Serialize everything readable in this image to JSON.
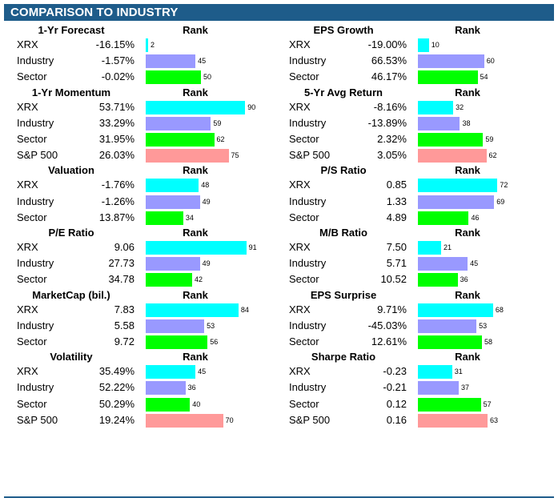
{
  "header": {
    "title": "COMPARISON TO INDUSTRY"
  },
  "colors": {
    "header_bg": "#1e5c8a",
    "XRX": "#00ffff",
    "Industry": "#9999ff",
    "Sector": "#00ff00",
    "S&P 500": "#ff9999"
  },
  "rank_label": "Rank",
  "chart_data": [
    {
      "type": "bar",
      "title": "1-Yr Forecast",
      "rows": [
        {
          "label": "XRX",
          "value": "-16.15%",
          "rank": 2
        },
        {
          "label": "Industry",
          "value": "-1.57%",
          "rank": 45
        },
        {
          "label": "Sector",
          "value": "-0.02%",
          "rank": 50
        }
      ]
    },
    {
      "type": "bar",
      "title": "EPS Growth",
      "rows": [
        {
          "label": "XRX",
          "value": "-19.00%",
          "rank": 10
        },
        {
          "label": "Industry",
          "value": "66.53%",
          "rank": 60
        },
        {
          "label": "Sector",
          "value": "46.17%",
          "rank": 54
        }
      ]
    },
    {
      "type": "bar",
      "title": "1-Yr Momentum",
      "rows": [
        {
          "label": "XRX",
          "value": "53.71%",
          "rank": 90
        },
        {
          "label": "Industry",
          "value": "33.29%",
          "rank": 59
        },
        {
          "label": "Sector",
          "value": "31.95%",
          "rank": 62
        },
        {
          "label": "S&P 500",
          "value": "26.03%",
          "rank": 75
        }
      ]
    },
    {
      "type": "bar",
      "title": "5-Yr Avg Return",
      "rows": [
        {
          "label": "XRX",
          "value": "-8.16%",
          "rank": 32
        },
        {
          "label": "Industry",
          "value": "-13.89%",
          "rank": 38
        },
        {
          "label": "Sector",
          "value": "2.32%",
          "rank": 59
        },
        {
          "label": "S&P 500",
          "value": "3.05%",
          "rank": 62
        }
      ]
    },
    {
      "type": "bar",
      "title": "Valuation",
      "rows": [
        {
          "label": "XRX",
          "value": "-1.76%",
          "rank": 48
        },
        {
          "label": "Industry",
          "value": "-1.26%",
          "rank": 49
        },
        {
          "label": "Sector",
          "value": "13.87%",
          "rank": 34
        }
      ]
    },
    {
      "type": "bar",
      "title": "P/S Ratio",
      "rows": [
        {
          "label": "XRX",
          "value": "0.85",
          "rank": 72
        },
        {
          "label": "Industry",
          "value": "1.33",
          "rank": 69
        },
        {
          "label": "Sector",
          "value": "4.89",
          "rank": 46
        }
      ]
    },
    {
      "type": "bar",
      "title": "P/E Ratio",
      "rows": [
        {
          "label": "XRX",
          "value": "9.06",
          "rank": 91
        },
        {
          "label": "Industry",
          "value": "27.73",
          "rank": 49
        },
        {
          "label": "Sector",
          "value": "34.78",
          "rank": 42
        }
      ]
    },
    {
      "type": "bar",
      "title": "M/B Ratio",
      "rows": [
        {
          "label": "XRX",
          "value": "7.50",
          "rank": 21
        },
        {
          "label": "Industry",
          "value": "5.71",
          "rank": 45
        },
        {
          "label": "Sector",
          "value": "10.52",
          "rank": 36
        }
      ]
    },
    {
      "type": "bar",
      "title": "MarketCap (bil.)",
      "rows": [
        {
          "label": "XRX",
          "value": "7.83",
          "rank": 84
        },
        {
          "label": "Industry",
          "value": "5.58",
          "rank": 53
        },
        {
          "label": "Sector",
          "value": "9.72",
          "rank": 56
        }
      ]
    },
    {
      "type": "bar",
      "title": "EPS Surprise",
      "rows": [
        {
          "label": "XRX",
          "value": "9.71%",
          "rank": 68
        },
        {
          "label": "Industry",
          "value": "-45.03%",
          "rank": 53
        },
        {
          "label": "Sector",
          "value": "12.61%",
          "rank": 58
        }
      ]
    },
    {
      "type": "bar",
      "title": "Volatility",
      "rows": [
        {
          "label": "XRX",
          "value": "35.49%",
          "rank": 45
        },
        {
          "label": "Industry",
          "value": "52.22%",
          "rank": 36
        },
        {
          "label": "Sector",
          "value": "50.29%",
          "rank": 40
        },
        {
          "label": "S&P 500",
          "value": "19.24%",
          "rank": 70
        }
      ]
    },
    {
      "type": "bar",
      "title": "Sharpe Ratio",
      "rows": [
        {
          "label": "XRX",
          "value": "-0.23",
          "rank": 31
        },
        {
          "label": "Industry",
          "value": "-0.21",
          "rank": 37
        },
        {
          "label": "Sector",
          "value": "0.12",
          "rank": 57
        },
        {
          "label": "S&P 500",
          "value": "0.16",
          "rank": 63
        }
      ]
    }
  ]
}
